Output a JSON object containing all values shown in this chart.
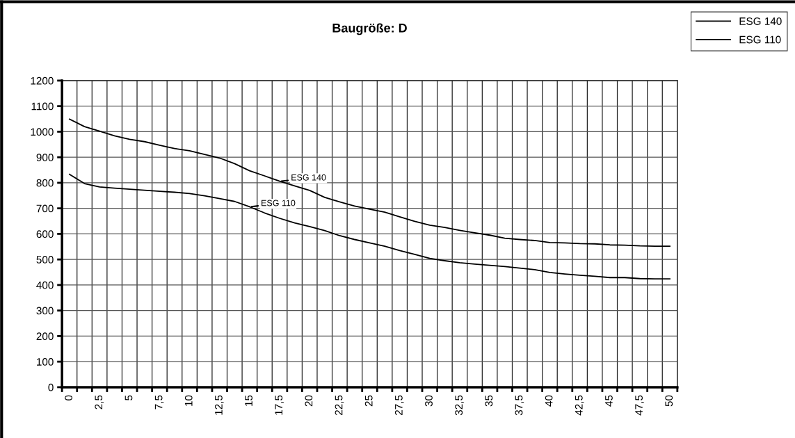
{
  "chart_data": {
    "type": "line",
    "title": "Baugröße: D",
    "categories": [
      "0",
      null,
      "2,5",
      null,
      "5",
      null,
      "7,5",
      null,
      "10",
      null,
      "12,5",
      null,
      "15",
      null,
      "17,5",
      null,
      "20",
      null,
      "22,5",
      null,
      "25",
      null,
      "27,5",
      null,
      "30",
      null,
      "32,5",
      null,
      "35",
      null,
      "37,5",
      null,
      "40",
      null,
      "42,5",
      null,
      "45",
      null,
      "47,5",
      null,
      "50"
    ],
    "series": [
      {
        "name": "ESG 140",
        "color": "#000000",
        "values": [
          1049,
          1020,
          1002,
          984,
          970,
          961,
          947,
          934,
          925,
          911,
          897,
          875,
          847,
          827,
          806,
          788,
          770,
          743,
          725,
          709,
          697,
          685,
          667,
          649,
          634,
          625,
          614,
          604,
          595,
          583,
          578,
          574,
          566,
          565,
          562,
          561,
          557,
          556,
          553,
          552,
          552
        ]
      },
      {
        "name": "ESG 110",
        "color": "#000000",
        "values": [
          833,
          797,
          784,
          779,
          775,
          771,
          767,
          763,
          758,
          749,
          738,
          727,
          706,
          682,
          661,
          643,
          629,
          613,
          593,
          578,
          565,
          552,
          535,
          520,
          504,
          495,
          487,
          482,
          477,
          472,
          466,
          460,
          449,
          443,
          438,
          434,
          429,
          429,
          425,
          424,
          424
        ]
      }
    ],
    "ylim": [
      0,
      1200
    ],
    "yticks": [
      0,
      100,
      200,
      300,
      400,
      500,
      600,
      700,
      800,
      900,
      1000,
      1100,
      1200
    ],
    "annotations": [
      {
        "text": "ESG 140",
        "x": "17,5",
        "y": 806
      },
      {
        "text": "ESG 110",
        "x": "15",
        "y": 706
      }
    ],
    "grid": true,
    "legend": "top right",
    "marker": "none",
    "line_style": "solid"
  }
}
